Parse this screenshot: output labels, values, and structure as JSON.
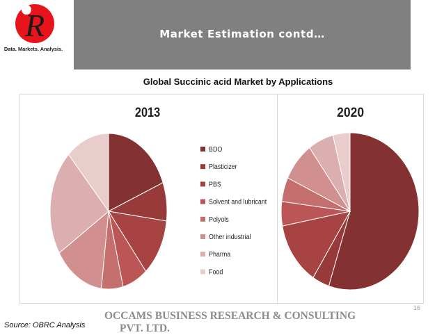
{
  "logo": {
    "letter": "R",
    "tagline": "Data. Markets. Analysis."
  },
  "header": {
    "title": "Market Estimation contd…"
  },
  "chart_heading": "Global Succinic acid Market by Applications",
  "chart_data": [
    {
      "type": "pie",
      "title": "2013",
      "categories": [
        "BDO",
        "Plasticizer",
        "PBS",
        "Solvent and lubricant",
        "Polyols",
        "Other industrial",
        "Pharma",
        "Food"
      ],
      "values": [
        19,
        8,
        12,
        7,
        6,
        14,
        22,
        12
      ],
      "unit": "%"
    },
    {
      "type": "pie",
      "title": "2020",
      "categories": [
        "BDO",
        "Plasticizer",
        "PBS",
        "Solvent and lubricant",
        "Polyols",
        "Other industrial",
        "Pharma",
        "Food"
      ],
      "values": [
        55,
        4,
        13,
        5,
        5,
        8,
        6,
        4
      ],
      "unit": "%"
    }
  ],
  "legend": {
    "position": "center",
    "items": [
      {
        "label": "BDO",
        "color": "#843131"
      },
      {
        "label": "Plasticizer",
        "color": "#983A3A"
      },
      {
        "label": "PBS",
        "color": "#A84343"
      },
      {
        "label": "Solvent and lubricant",
        "color": "#BC5656"
      },
      {
        "label": "Polyols",
        "color": "#C46E6E"
      },
      {
        "label": "Other industrial",
        "color": "#D18F8F"
      },
      {
        "label": "Pharma",
        "color": "#DBAFAF"
      },
      {
        "label": "Food",
        "color": "#E9CDCD"
      }
    ]
  },
  "page_number": "16",
  "source": "Source: OBRC Analysis",
  "company": {
    "line1": "OCCAMS BUSINESS RESEARCH & CONSULTING",
    "line2": "PVT. LTD."
  }
}
